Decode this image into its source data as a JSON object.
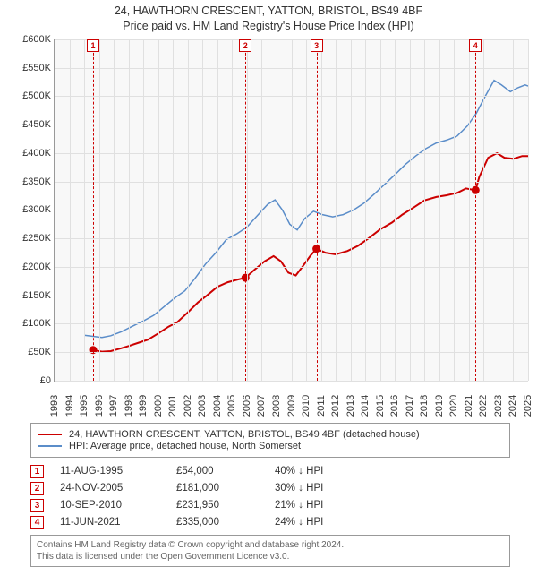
{
  "title_line1": "24, HAWTHORN CRESCENT, YATTON, BRISTOL, BS49 4BF",
  "title_line2": "Price paid vs. HM Land Registry's House Price Index (HPI)",
  "chart": {
    "background_color": "#f8f8f8",
    "grid_color": "#e0e0e0",
    "axis_color": "#999999",
    "label_fontsize": 11,
    "ylim_min": 0,
    "ylim_max": 600000,
    "ytick_step": 50000,
    "yticks": [
      "£0",
      "£50K",
      "£100K",
      "£150K",
      "£200K",
      "£250K",
      "£300K",
      "£350K",
      "£400K",
      "£450K",
      "£500K",
      "£550K",
      "£600K"
    ],
    "xlim_min": 1993,
    "xlim_max": 2025,
    "xticks": [
      1993,
      1994,
      1995,
      1996,
      1997,
      1998,
      1999,
      2000,
      2001,
      2002,
      2003,
      2004,
      2005,
      2006,
      2007,
      2008,
      2009,
      2010,
      2011,
      2012,
      2013,
      2014,
      2015,
      2016,
      2017,
      2018,
      2019,
      2020,
      2021,
      2022,
      2023,
      2024,
      2025
    ],
    "series_property": {
      "color": "#cc0000",
      "line_width": 2,
      "points": [
        [
          1995.6,
          54000
        ],
        [
          1996.2,
          51000
        ],
        [
          1996.8,
          52000
        ],
        [
          1997.5,
          57000
        ],
        [
          1998.0,
          61000
        ],
        [
          1998.7,
          67000
        ],
        [
          1999.3,
          72000
        ],
        [
          2000.0,
          83000
        ],
        [
          2000.7,
          95000
        ],
        [
          2001.3,
          103000
        ],
        [
          2002.0,
          120000
        ],
        [
          2002.7,
          138000
        ],
        [
          2003.3,
          150000
        ],
        [
          2004.0,
          165000
        ],
        [
          2004.7,
          173000
        ],
        [
          2005.4,
          178000
        ],
        [
          2005.9,
          181000
        ],
        [
          2006.5,
          195000
        ],
        [
          2007.2,
          210000
        ],
        [
          2007.8,
          219000
        ],
        [
          2008.3,
          210000
        ],
        [
          2008.8,
          190000
        ],
        [
          2009.3,
          185000
        ],
        [
          2009.8,
          202000
        ],
        [
          2010.3,
          220000
        ],
        [
          2010.7,
          231950
        ],
        [
          2011.3,
          225000
        ],
        [
          2012.0,
          222000
        ],
        [
          2012.8,
          228000
        ],
        [
          2013.5,
          237000
        ],
        [
          2014.2,
          250000
        ],
        [
          2015.0,
          266000
        ],
        [
          2015.8,
          278000
        ],
        [
          2016.5,
          292000
        ],
        [
          2017.3,
          305000
        ],
        [
          2018.0,
          317000
        ],
        [
          2018.8,
          323000
        ],
        [
          2019.5,
          326000
        ],
        [
          2020.2,
          330000
        ],
        [
          2020.8,
          338000
        ],
        [
          2021.45,
          335000
        ],
        [
          2021.7,
          358000
        ],
        [
          2022.3,
          392000
        ],
        [
          2022.9,
          400000
        ],
        [
          2023.4,
          392000
        ],
        [
          2024.0,
          390000
        ],
        [
          2024.6,
          395000
        ],
        [
          2025.0,
          395000
        ]
      ],
      "sale_markers": [
        {
          "x": 1995.6,
          "y": 54000
        },
        {
          "x": 2005.9,
          "y": 181000
        },
        {
          "x": 2010.7,
          "y": 231950
        },
        {
          "x": 2021.45,
          "y": 335000
        }
      ]
    },
    "series_hpi": {
      "color": "#5b8dc9",
      "line_width": 1.5,
      "points": [
        [
          1995.0,
          80000
        ],
        [
          1995.6,
          78000
        ],
        [
          1996.2,
          76000
        ],
        [
          1996.8,
          79000
        ],
        [
          1997.5,
          86000
        ],
        [
          1998.2,
          95000
        ],
        [
          1999.0,
          105000
        ],
        [
          1999.7,
          115000
        ],
        [
          2000.4,
          130000
        ],
        [
          2001.1,
          145000
        ],
        [
          2001.8,
          158000
        ],
        [
          2002.5,
          180000
        ],
        [
          2003.2,
          205000
        ],
        [
          2003.9,
          225000
        ],
        [
          2004.6,
          248000
        ],
        [
          2005.3,
          258000
        ],
        [
          2006.0,
          270000
        ],
        [
          2006.7,
          290000
        ],
        [
          2007.4,
          310000
        ],
        [
          2007.9,
          318000
        ],
        [
          2008.4,
          300000
        ],
        [
          2008.9,
          275000
        ],
        [
          2009.4,
          265000
        ],
        [
          2009.9,
          285000
        ],
        [
          2010.5,
          298000
        ],
        [
          2011.1,
          292000
        ],
        [
          2011.8,
          288000
        ],
        [
          2012.5,
          292000
        ],
        [
          2013.2,
          300000
        ],
        [
          2013.9,
          312000
        ],
        [
          2014.6,
          328000
        ],
        [
          2015.3,
          345000
        ],
        [
          2016.0,
          362000
        ],
        [
          2016.7,
          380000
        ],
        [
          2017.4,
          395000
        ],
        [
          2018.1,
          408000
        ],
        [
          2018.8,
          418000
        ],
        [
          2019.5,
          423000
        ],
        [
          2020.2,
          430000
        ],
        [
          2020.9,
          448000
        ],
        [
          2021.5,
          470000
        ],
        [
          2022.1,
          500000
        ],
        [
          2022.7,
          528000
        ],
        [
          2023.2,
          520000
        ],
        [
          2023.8,
          508000
        ],
        [
          2024.3,
          515000
        ],
        [
          2024.8,
          520000
        ],
        [
          2025.0,
          518000
        ]
      ]
    },
    "event_lines": [
      {
        "n": "1",
        "x": 1995.6
      },
      {
        "n": "2",
        "x": 2005.9
      },
      {
        "n": "3",
        "x": 2010.7
      },
      {
        "n": "4",
        "x": 2021.45
      }
    ]
  },
  "legend": {
    "items": [
      {
        "color": "#cc0000",
        "label": "24, HAWTHORN CRESCENT, YATTON, BRISTOL, BS49 4BF (detached house)"
      },
      {
        "color": "#5b8dc9",
        "label": "HPI: Average price, detached house, North Somerset"
      }
    ]
  },
  "events": [
    {
      "n": "1",
      "date": "11-AUG-1995",
      "price": "£54,000",
      "delta": "40% ↓ HPI"
    },
    {
      "n": "2",
      "date": "24-NOV-2005",
      "price": "£181,000",
      "delta": "30% ↓ HPI"
    },
    {
      "n": "3",
      "date": "10-SEP-2010",
      "price": "£231,950",
      "delta": "21% ↓ HPI"
    },
    {
      "n": "4",
      "date": "11-JUN-2021",
      "price": "£335,000",
      "delta": "24% ↓ HPI"
    }
  ],
  "footer_line1": "Contains HM Land Registry data © Crown copyright and database right 2024.",
  "footer_line2": "This data is licensed under the Open Government Licence v3.0."
}
